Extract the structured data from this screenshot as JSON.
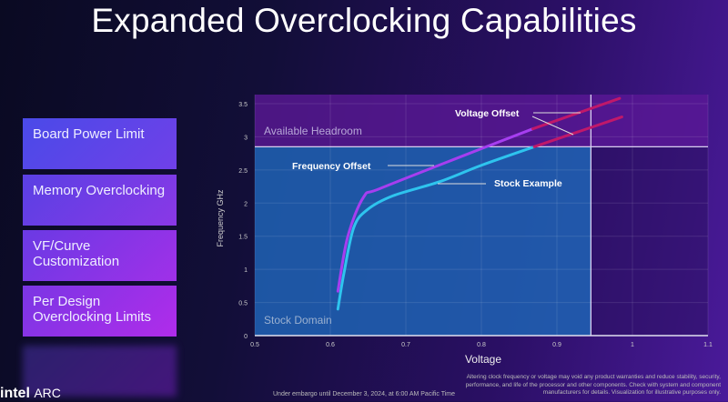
{
  "slide": {
    "title": "Expanded Overclocking Capabilities",
    "features": [
      "Board Power Limit",
      "Memory Overclocking",
      "VF/Curve Customization",
      "Per Design Overclocking Limits"
    ],
    "logo": {
      "brand": "intel",
      "product": "ARC"
    },
    "embargo": "Under embargo until December 3, 2024, at 6:00 AM Pacific Time",
    "disclaimer": "Altering clock frequency or voltage may void any product warranties and reduce stability, security, performance, and life of the processor and other components. Check with system and component manufacturers for details. Visualization for illustrative purposes only."
  },
  "chart_data": {
    "type": "line",
    "xlabel": "Voltage",
    "ylabel": "Frequency GHz",
    "xlim": [
      0.5,
      1.1
    ],
    "ylim": [
      0,
      3.5
    ],
    "xticks": [
      "0.5",
      "0.6",
      "0.7",
      "0.8",
      "0.9",
      "1",
      "1.1"
    ],
    "yticks": [
      "0",
      "0.5",
      "1",
      "1.5",
      "2",
      "2.5",
      "3",
      "3.5"
    ],
    "grid": true,
    "regions": [
      {
        "label": "Stock Domain",
        "x": [
          0.5,
          0.945
        ],
        "y": [
          0,
          2.85
        ],
        "color": "#1e6fc0"
      },
      {
        "label": "Available Headroom",
        "x": [
          0.5,
          1.1
        ],
        "y": [
          2.85,
          3.5
        ],
        "color": "#6a1aa8"
      }
    ],
    "series": [
      {
        "name": "Stock Example",
        "color": "#2ec4ee",
        "points": [
          [
            0.61,
            0.4
          ],
          [
            0.618,
            0.94
          ],
          [
            0.631,
            1.63
          ],
          [
            0.649,
            1.9
          ],
          [
            0.683,
            2.11
          ],
          [
            0.744,
            2.32
          ],
          [
            0.8,
            2.57
          ],
          [
            0.87,
            2.85
          ]
        ]
      },
      {
        "name": "Frequency Offset",
        "color": "#a63ef0",
        "points": [
          [
            0.61,
            0.67
          ],
          [
            0.623,
            1.49
          ],
          [
            0.644,
            2.09
          ],
          [
            0.666,
            2.22
          ],
          [
            0.775,
            2.71
          ],
          [
            0.868,
            3.12
          ]
        ]
      },
      {
        "name": "Voltage Offset",
        "color": "#c0186a",
        "points": [
          [
            0.87,
            2.85
          ],
          [
            0.986,
            3.3
          ]
        ]
      },
      {
        "name": "Voltage Offset",
        "color": "#c0186a",
        "points": [
          [
            0.868,
            3.12
          ],
          [
            0.983,
            3.58
          ]
        ]
      }
    ],
    "annotations": [
      "Voltage Offset",
      "Frequency Offset",
      "Stock Example"
    ]
  }
}
